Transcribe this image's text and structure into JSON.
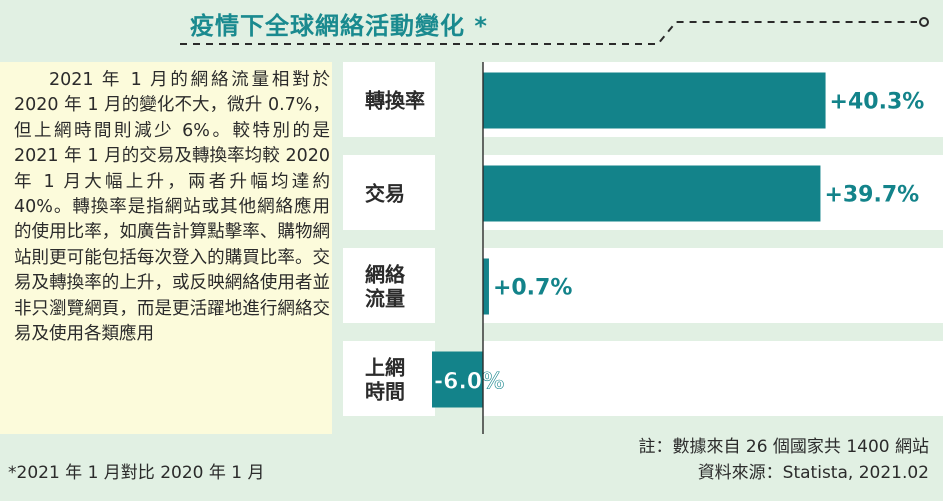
{
  "title": "疫情下全球網絡活動變化 *",
  "description": "2021 年 1 月的網絡流量相對於 2020 年 1 月的變化不大，微升 0.7%，但上網時間則減少 6%。較特別的是 2021 年 1 月的交易及轉換率均較 2020 年 1 月大幅上升，兩者升幅均達約 40%。轉換率是指網站或其他網絡應用的使用比率，如廣告計算點擊率、購物網站則更可能包括每次登入的購買比率。交易及轉換率的上升，或反映網絡使用者並非只瀏覽網頁，而是更活躍地進行網絡交易及使用各類應用",
  "footnote": "*2021 年 1 月對比 2020 年 1 月",
  "note": "註：數據來自 26 個國家共 1400 網站",
  "source": "資料來源：Statista, 2021.02",
  "colors": {
    "background": "#e1f0e3",
    "panel": "#fcfbdb",
    "band": "#ffffff",
    "bar": "#13838a",
    "title": "#1a8a8f"
  },
  "chart_data": {
    "type": "bar",
    "orientation": "horizontal",
    "categories": [
      [
        "轉換率"
      ],
      [
        "交易"
      ],
      [
        "網絡",
        "流量"
      ],
      [
        "上網",
        "時間"
      ]
    ],
    "values": [
      40.3,
      39.7,
      0.7,
      -6.0
    ],
    "data_labels": [
      "+40.3%",
      "+39.7%",
      "+0.7%",
      "-6.0%"
    ],
    "unit": "%",
    "xlim": [
      -12,
      43
    ],
    "grid": false,
    "legend": "none"
  }
}
